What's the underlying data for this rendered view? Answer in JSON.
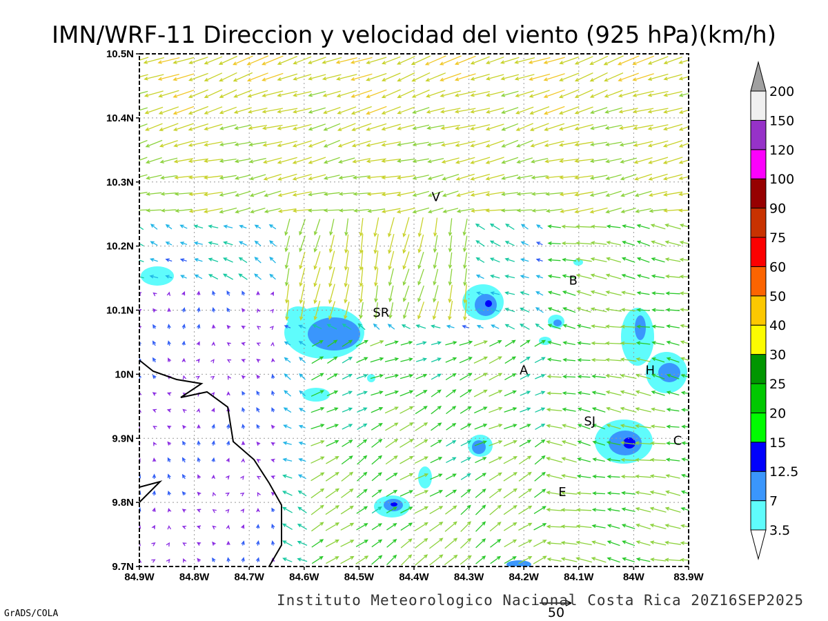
{
  "title": "IMN/WRF-11 Direccion y velocidad del viento (925 hPa)(km/h)",
  "credit": "Instituto Meteorologico Nacional Costa Rica 20Z16SEP2025",
  "software": "GrADS/COLA",
  "reference_vector": "50",
  "x_ticks": [
    "84.9W",
    "84.8W",
    "84.7W",
    "84.6W",
    "84.5W",
    "84.4W",
    "84.3W",
    "84.2W",
    "84.1W",
    "84W",
    "83.9W"
  ],
  "y_ticks": [
    "10.5N",
    "10.4N",
    "10.3N",
    "10.2N",
    "10.1N",
    "10N",
    "9.9N",
    "9.8N",
    "9.7N"
  ],
  "colorbar": {
    "labels": [
      "3.5",
      "7",
      "12.5",
      "15",
      "20",
      "25",
      "30",
      "40",
      "50",
      "60",
      "75",
      "90",
      "100",
      "120",
      "150",
      "200"
    ],
    "colors": [
      "#ffffff",
      "#5ffcfc",
      "#3a96fc",
      "#0000fc",
      "#00fc00",
      "#00c800",
      "#009600",
      "#fcfc00",
      "#fcc800",
      "#fc6400",
      "#fc0000",
      "#c83200",
      "#960000",
      "#fc00fc",
      "#9632c8",
      "#f0f0f0",
      "#a0a0a0"
    ]
  },
  "cities": [
    {
      "label": "V",
      "lon": -84.36,
      "lat": 10.27
    },
    {
      "label": "SR",
      "lon": -84.46,
      "lat": 10.09
    },
    {
      "label": "B",
      "lon": -84.11,
      "lat": 10.14
    },
    {
      "label": "A",
      "lon": -84.2,
      "lat": 10.0
    },
    {
      "label": "H",
      "lon": -83.97,
      "lat": 10.0
    },
    {
      "label": "SJ",
      "lon": -84.08,
      "lat": 9.92
    },
    {
      "label": "C",
      "lon": -83.92,
      "lat": 9.89
    },
    {
      "label": "E",
      "lon": -84.13,
      "lat": 9.81
    }
  ]
}
